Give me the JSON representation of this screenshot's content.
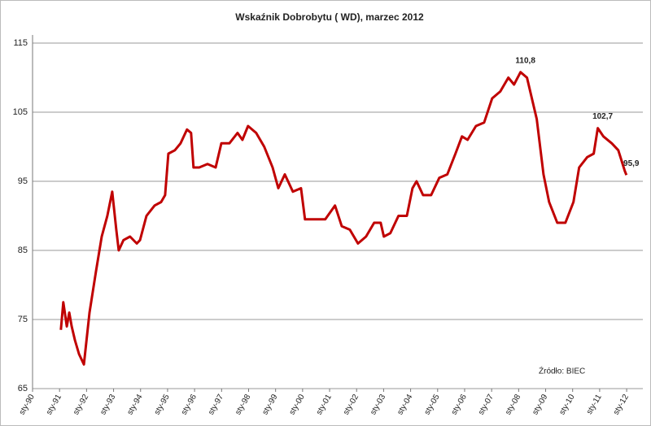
{
  "chart_data": {
    "type": "line",
    "title": "Wskaźnik Dobrobytu ( WD), marzec 2012",
    "annotation": "Źródło: BIEC",
    "x": [
      1991.05,
      1991.14,
      1991.27,
      1991.36,
      1991.45,
      1991.57,
      1991.72,
      1991.9,
      1992.11,
      1992.35,
      1992.56,
      1992.77,
      1992.95,
      1993.1,
      1993.19,
      1993.37,
      1993.61,
      1993.86,
      1993.98,
      1994.22,
      1994.52,
      1994.76,
      1994.91,
      1995.03,
      1995.27,
      1995.48,
      1995.72,
      1995.87,
      1995.96,
      1996.17,
      1996.48,
      1996.78,
      1996.99,
      1997.29,
      1997.59,
      1997.77,
      1997.98,
      1998.28,
      1998.58,
      1998.89,
      1999.1,
      1999.34,
      1999.64,
      1999.94,
      2000.09,
      2000.54,
      2000.84,
      2001.2,
      2001.45,
      2001.75,
      2002.05,
      2002.35,
      2002.65,
      2002.89,
      2003.01,
      2003.25,
      2003.55,
      2003.86,
      2004.07,
      2004.22,
      2004.46,
      2004.76,
      2005.06,
      2005.36,
      2005.66,
      2005.9,
      2006.11,
      2006.42,
      2006.72,
      2007.02,
      2007.32,
      2007.62,
      2007.83,
      2008.07,
      2008.31,
      2008.67,
      2008.92,
      2009.13,
      2009.43,
      2009.73,
      2010.03,
      2010.24,
      2010.54,
      2010.78,
      2010.93,
      2011.14,
      2011.45,
      2011.69,
      2011.93,
      2011.99
    ],
    "series": [
      {
        "color": "#c00000",
        "values": [
          73.5,
          77.5,
          74,
          76,
          74,
          72,
          70,
          68.5,
          76,
          82,
          87,
          90,
          93.5,
          88,
          85,
          86.5,
          87,
          86,
          86.5,
          90,
          91.5,
          92,
          93,
          99,
          99.5,
          100.5,
          102.5,
          102,
          97,
          97,
          97.5,
          97,
          100.5,
          100.5,
          102,
          101,
          103,
          102,
          100,
          97,
          94,
          96,
          93.5,
          94,
          89.5,
          89.5,
          89.5,
          91.5,
          88.5,
          88,
          86,
          87,
          89,
          89,
          87,
          87.5,
          90,
          90,
          94,
          95,
          93,
          93,
          95.5,
          96,
          99,
          101.5,
          101,
          103,
          103.5,
          107,
          108,
          110,
          109,
          110.8,
          110,
          104,
          96,
          92,
          89,
          89,
          92,
          97,
          98.5,
          99,
          102.7,
          101.5,
          100.5,
          99.5,
          96.5,
          95.9
        ],
        "value_labels": [
          null,
          null,
          null,
          null,
          null,
          null,
          null,
          null,
          null,
          null,
          null,
          null,
          null,
          null,
          null,
          null,
          null,
          null,
          null,
          null,
          null,
          null,
          null,
          null,
          null,
          null,
          null,
          null,
          null,
          null,
          null,
          null,
          null,
          null,
          null,
          null,
          null,
          null,
          null,
          null,
          null,
          null,
          null,
          null,
          null,
          null,
          null,
          null,
          null,
          null,
          null,
          null,
          null,
          null,
          null,
          null,
          null,
          null,
          null,
          null,
          null,
          null,
          null,
          null,
          null,
          null,
          null,
          null,
          null,
          null,
          null,
          null,
          null,
          "110,8",
          null,
          null,
          null,
          null,
          null,
          null,
          null,
          null,
          null,
          null,
          "102,7",
          null,
          null,
          null,
          null,
          "95,9"
        ]
      }
    ],
    "xlim": [
      1990,
      2012.6
    ],
    "xticks": [
      {
        "value": 1990,
        "label": "sty-90"
      },
      {
        "value": 1991,
        "label": "sty-91"
      },
      {
        "value": 1992,
        "label": "sty-92"
      },
      {
        "value": 1993,
        "label": "sty-93"
      },
      {
        "value": 1994,
        "label": "sty-94"
      },
      {
        "value": 1995,
        "label": "sty-95"
      },
      {
        "value": 1996,
        "label": "sty-96"
      },
      {
        "value": 1997,
        "label": "sty-97"
      },
      {
        "value": 1998,
        "label": "sty-98"
      },
      {
        "value": 1999,
        "label": "sty-99"
      },
      {
        "value": 2000,
        "label": "sty-00"
      },
      {
        "value": 2001,
        "label": "sty-01"
      },
      {
        "value": 2002,
        "label": "sty-02"
      },
      {
        "value": 2003,
        "label": "sty-03"
      },
      {
        "value": 2004,
        "label": "sty-04"
      },
      {
        "value": 2005,
        "label": "sty-05"
      },
      {
        "value": 2006,
        "label": "sty-06"
      },
      {
        "value": 2007,
        "label": "sty-07"
      },
      {
        "value": 2008,
        "label": "sty-08"
      },
      {
        "value": 2009,
        "label": "sty-09"
      },
      {
        "value": 2010,
        "label": "sty-10"
      },
      {
        "value": 2011,
        "label": "sty-11"
      },
      {
        "value": 2012,
        "label": "sty-12"
      }
    ],
    "ylim": [
      65,
      115
    ],
    "yticks": [
      65,
      75,
      85,
      95,
      105,
      115
    ],
    "grid": true
  }
}
